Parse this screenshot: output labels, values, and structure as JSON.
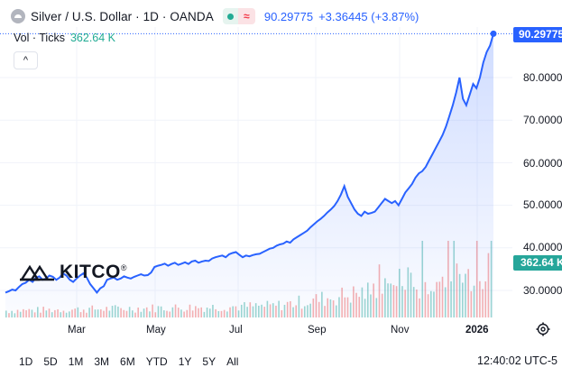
{
  "legend": {
    "symbol_icon": "silver-coin-icon",
    "title": "Silver / U.S. Dollar · 1D · OANDA",
    "status_icon": "market-open-dot-icon",
    "wave_icon": "wave-icon",
    "wave_glyph": "≈",
    "price": "90.29775",
    "change": "+3.36445 (+3.87%)"
  },
  "volume_legend": {
    "label": "Vol · Ticks",
    "value": "362.64 K"
  },
  "collapse_button": {
    "icon": "chevron-up-icon",
    "glyph": "^"
  },
  "price_axis": {
    "ticks": [
      "80.000000",
      "70.000000",
      "60.000000",
      "50.000000",
      "40.000000",
      "30.000000"
    ],
    "current_price_label": "90.29775",
    "current_volume_label": "362.64 K"
  },
  "time_axis": {
    "labels": [
      "Mar",
      "May",
      "Jul",
      "Sep",
      "Nov",
      "2026"
    ]
  },
  "logo": {
    "text": "KITCO",
    "mark": "®"
  },
  "range_buttons": [
    "1D",
    "5D",
    "1M",
    "3M",
    "6M",
    "YTD",
    "1Y",
    "5Y",
    "All"
  ],
  "clock": "12:40:02 UTC-5",
  "colors": {
    "line": "#2962ff",
    "vol_up": "#26a69a",
    "vol_down": "#ef5350",
    "grid": "#f0f3fa"
  },
  "chart_data": {
    "type": "area",
    "ylim": [
      25,
      92
    ],
    "x_labels": [
      "Mar",
      "May",
      "Jul",
      "Sep",
      "Nov",
      "2026"
    ],
    "series": [
      {
        "values": [
          29.5,
          29.8,
          30.2,
          30.0,
          30.8,
          31.5,
          31.8,
          32.5,
          32.0,
          33.0,
          33.3,
          32.5,
          32.8,
          33.5,
          33.2,
          32.5,
          33.0,
          34.0,
          33.5,
          32.5,
          32.0,
          32.8,
          33.5,
          34.0,
          33.0,
          31.5,
          30.5,
          29.5,
          30.5,
          31.0,
          32.5,
          32.8,
          33.0,
          32.5,
          32.8,
          33.3,
          33.0,
          32.8,
          33.2,
          33.5,
          33.8,
          33.5,
          33.6,
          34.2,
          35.5,
          35.8,
          36.0,
          36.3,
          35.8,
          36.2,
          36.5,
          36.0,
          36.3,
          36.6,
          36.2,
          36.8,
          37.0,
          36.5,
          36.8,
          37.0,
          36.9,
          37.5,
          37.8,
          38.0,
          38.2,
          37.8,
          38.5,
          38.8,
          39.0,
          38.4,
          37.8,
          38.2,
          38.0,
          38.3,
          38.5,
          38.6,
          39.0,
          39.4,
          39.8,
          40.0,
          40.5,
          40.8,
          41.0,
          41.5,
          41.2,
          42.0,
          42.5,
          43.0,
          43.5,
          44.0,
          44.8,
          45.5,
          46.2,
          46.8,
          47.5,
          48.3,
          49.0,
          49.8,
          51.0,
          52.5,
          54.5,
          52.0,
          50.5,
          49.0,
          48.0,
          47.5,
          48.5,
          48.0,
          48.2,
          48.5,
          49.5,
          50.5,
          51.5,
          51.0,
          50.5,
          51.0,
          50.0,
          51.5,
          53.0,
          54.0,
          55.0,
          56.5,
          57.5,
          58.0,
          59.0,
          60.5,
          62.0,
          63.5,
          65.0,
          66.5,
          68.5,
          71.0,
          73.5,
          76.5,
          80.0,
          75.0,
          73.5,
          76.0,
          78.5,
          77.5,
          80.0,
          83.5,
          86.0,
          87.5,
          90.3
        ]
      }
    ],
    "volume_unit": "K ticks",
    "volume_last": 362.64
  }
}
